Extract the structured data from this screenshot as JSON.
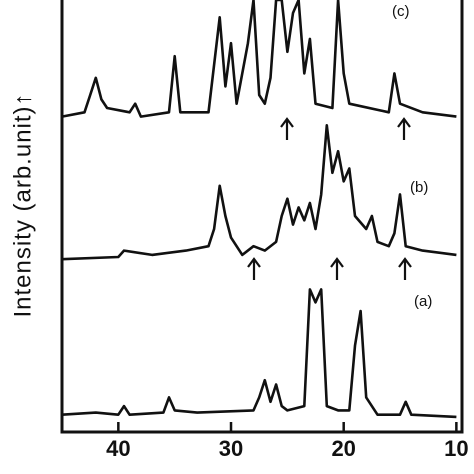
{
  "chart_data": {
    "type": "line",
    "y_label": "Intensity (arb.unit)↑",
    "annotations": [
      "(a)",
      "(b)",
      "(c)"
    ],
    "xlim": [
      45,
      9.5
    ],
    "ylim": [
      0,
      100
    ],
    "xticks": [
      40,
      30,
      20,
      10
    ],
    "series": [
      {
        "name": "(a)",
        "color": "#111111",
        "x": [
          45,
          42,
          40,
          39.5,
          39,
          36,
          35.5,
          35,
          33,
          28,
          27.5,
          27,
          26.5,
          26,
          25.5,
          25,
          23.5,
          23,
          22.5,
          22,
          21.5,
          20.5,
          19.5,
          19,
          18.5,
          18,
          17,
          15,
          14.5,
          14,
          10
        ],
        "values": [
          4,
          4.5,
          4,
          6,
          4,
          4.5,
          8,
          5,
          4.5,
          5,
          8,
          12,
          7,
          11,
          6,
          5,
          6,
          33,
          30,
          33,
          6,
          5,
          5,
          20,
          28,
          8,
          4,
          4,
          7,
          4,
          3.5
        ]
      },
      {
        "name": "(b)",
        "color": "#111111",
        "x": [
          45,
          40,
          39.5,
          37,
          34,
          32,
          31.5,
          31,
          30.5,
          30,
          29,
          28,
          27,
          26,
          25.5,
          25,
          24.5,
          24,
          23.5,
          23,
          22.5,
          22,
          21.5,
          21,
          20.5,
          20,
          19.5,
          19,
          18,
          17.5,
          17,
          16,
          15.5,
          15,
          14.5,
          13,
          10
        ],
        "values": [
          40,
          40.5,
          42,
          41,
          42,
          43,
          47,
          57,
          50,
          45,
          41,
          43,
          42,
          44,
          50,
          54,
          48,
          52,
          49,
          53,
          47,
          55,
          71,
          60,
          65,
          58,
          61,
          50,
          47,
          50,
          44,
          43,
          46,
          55,
          43,
          42,
          41
        ]
      },
      {
        "name": "(c)",
        "color": "#111111",
        "x": [
          45,
          43,
          42.5,
          42,
          41.5,
          41,
          39,
          38.5,
          38,
          35.5,
          35,
          34.5,
          32,
          31.5,
          31,
          30.5,
          30,
          29.5,
          28.5,
          28,
          27.5,
          27,
          26.5,
          26,
          25.5,
          25,
          24.5,
          24,
          23.5,
          23,
          22.5,
          21,
          20.5,
          20,
          19.5,
          16,
          15.5,
          15,
          13,
          10
        ],
        "values": [
          73,
          74,
          78,
          82,
          77,
          75,
          74,
          76,
          73,
          74,
          87,
          74,
          74,
          85,
          96,
          80,
          90,
          76,
          90,
          100,
          78,
          76,
          82,
          100,
          100,
          88,
          97,
          100,
          83,
          91,
          76,
          75,
          100,
          83,
          76,
          74,
          83,
          76,
          74,
          73
        ]
      }
    ]
  }
}
